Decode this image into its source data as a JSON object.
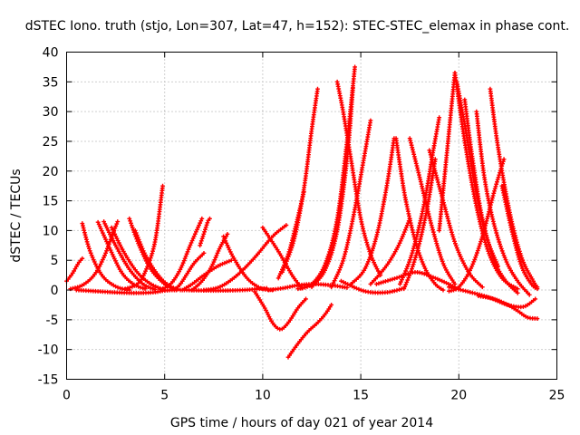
{
  "chart_data": {
    "type": "scatter",
    "title": "dSTEC Iono. truth (stjo, Lon=307, Lat=47, h=152): STEC-STEC_elemax in phase cont.",
    "xlabel": "GPS time / hours of day 021 of year 2014",
    "ylabel": "dSTEC  / TECUs",
    "xlim": [
      0,
      25
    ],
    "ylim": [
      -15,
      40
    ],
    "xticks": [
      0,
      5,
      10,
      15,
      20,
      25
    ],
    "yticks": [
      -15,
      -10,
      -5,
      0,
      5,
      10,
      15,
      20,
      25,
      30,
      35,
      40
    ],
    "grid": true,
    "marker": "plus",
    "color": "#ff0000",
    "series": [
      {
        "x": [
          0.0,
          0.3,
          0.6,
          0.8
        ],
        "y": [
          1.5,
          2.8,
          4.5,
          5.3
        ]
      },
      {
        "x": [
          0.8,
          1.2,
          1.8,
          2.5,
          3.2
        ],
        "y": [
          11.2,
          6.5,
          2.5,
          0.6,
          0.0
        ]
      },
      {
        "x": [
          0.2,
          0.8,
          1.4,
          1.9,
          2.3,
          2.6
        ],
        "y": [
          0.2,
          0.8,
          2.5,
          5.5,
          9.0,
          11.5
        ]
      },
      {
        "x": [
          1.6,
          2.2,
          2.8,
          3.4,
          4.0
        ],
        "y": [
          11.4,
          7.0,
          3.0,
          1.0,
          0.2
        ]
      },
      {
        "x": [
          1.9,
          2.5,
          3.2,
          3.9,
          4.5
        ],
        "y": [
          11.5,
          7.5,
          3.5,
          1.0,
          0.1
        ]
      },
      {
        "x": [
          2.3,
          2.9,
          3.6,
          4.3,
          5.0
        ],
        "y": [
          10.5,
          6.5,
          3.0,
          1.0,
          0.0
        ]
      },
      {
        "x": [
          3.2,
          3.7,
          4.3,
          5.0,
          5.6
        ],
        "y": [
          12.0,
          7.5,
          3.5,
          1.0,
          0.0
        ]
      },
      {
        "x": [
          3.5,
          4.0,
          4.6,
          5.2,
          5.8
        ],
        "y": [
          10.0,
          6.0,
          2.8,
          0.8,
          0.0
        ]
      },
      {
        "x": [
          0.5,
          1.5,
          2.5,
          3.5,
          4.4,
          5.0,
          5.5
        ],
        "y": [
          0.0,
          -0.2,
          -0.4,
          -0.5,
          -0.4,
          -0.1,
          0.0
        ]
      },
      {
        "x": [
          3.0,
          3.6,
          4.0,
          4.5,
          4.9
        ],
        "y": [
          0.2,
          1.0,
          3.0,
          8.0,
          17.5
        ]
      },
      {
        "x": [
          4.8,
          5.3,
          5.8,
          6.3,
          6.9
        ],
        "y": [
          0.1,
          1.0,
          3.5,
          7.5,
          12.0
        ]
      },
      {
        "x": [
          5.5,
          5.8,
          6.1,
          6.5,
          7.0
        ],
        "y": [
          0.0,
          1.0,
          2.5,
          4.5,
          6.2
        ]
      },
      {
        "x": [
          5.9,
          6.4,
          7.0,
          7.7,
          8.4
        ],
        "y": [
          0.0,
          1.0,
          2.5,
          4.0,
          5.0
        ]
      },
      {
        "x": [
          6.4,
          6.9,
          7.4,
          7.8,
          8.2
        ],
        "y": [
          0.0,
          1.5,
          4.0,
          7.0,
          9.4
        ]
      },
      {
        "x": [
          6.8,
          7.0,
          7.2,
          7.3
        ],
        "y": [
          7.5,
          9.5,
          11.5,
          12.0
        ]
      },
      {
        "x": [
          8.0,
          8.5,
          9.2,
          9.9,
          10.5
        ],
        "y": [
          9.0,
          5.5,
          2.0,
          0.3,
          0.0
        ]
      },
      {
        "x": [
          7.0,
          7.8,
          8.7,
          9.6,
          10.5,
          11.2
        ],
        "y": [
          0.0,
          0.5,
          2.5,
          5.5,
          9.0,
          10.9
        ]
      },
      {
        "x": [
          10.0,
          10.8,
          11.5,
          12.0
        ],
        "y": [
          10.5,
          6.5,
          2.5,
          0.3
        ]
      },
      {
        "x": [
          6.0,
          7.5,
          9.0,
          10.2
        ],
        "y": [
          0.0,
          -0.1,
          0.0,
          0.3
        ]
      },
      {
        "x": [
          9.6,
          10.1,
          10.5,
          10.9,
          11.3,
          11.8,
          12.2
        ],
        "y": [
          -0.3,
          -3.0,
          -5.5,
          -6.6,
          -5.5,
          -3.0,
          -1.5
        ]
      },
      {
        "x": [
          10.3,
          11.0,
          11.8,
          12.6,
          13.5,
          14.3
        ],
        "y": [
          0.0,
          0.3,
          0.8,
          1.0,
          0.8,
          0.4
        ]
      },
      {
        "x": [
          10.8,
          11.3,
          11.7,
          12.1
        ],
        "y": [
          2.0,
          6.0,
          11.0,
          16.5
        ]
      },
      {
        "x": [
          11.3,
          11.8,
          12.3,
          12.8,
          13.2,
          13.5
        ],
        "y": [
          -11.3,
          -9.0,
          -7.0,
          -5.5,
          -4.0,
          -2.5
        ]
      },
      {
        "x": [
          11.0,
          11.6,
          12.1,
          12.5,
          12.8
        ],
        "y": [
          3.0,
          8.5,
          17.0,
          27.0,
          33.8
        ]
      },
      {
        "x": [
          11.8,
          12.5,
          13.2,
          13.8,
          14.3,
          14.7
        ],
        "y": [
          0.2,
          1.0,
          4.5,
          12.0,
          25.0,
          37.5
        ]
      },
      {
        "x": [
          12.5,
          13.2,
          13.8,
          14.3,
          14.6
        ],
        "y": [
          0.5,
          3.5,
          10.0,
          22.0,
          34.0
        ]
      },
      {
        "x": [
          13.8,
          14.1,
          14.5,
          15.0,
          15.5,
          16.0
        ],
        "y": [
          35.0,
          30.0,
          22.0,
          12.0,
          6.0,
          2.5
        ]
      },
      {
        "x": [
          13.5,
          14.1,
          14.6,
          15.1,
          15.5
        ],
        "y": [
          0.5,
          5.0,
          12.0,
          21.0,
          28.5
        ]
      },
      {
        "x": [
          14.5,
          15.2,
          15.8,
          16.3,
          16.7
        ],
        "y": [
          1.0,
          3.5,
          9.0,
          17.0,
          25.5
        ]
      },
      {
        "x": [
          15.5,
          16.0,
          16.5,
          17.0,
          17.5
        ],
        "y": [
          1.0,
          2.8,
          5.0,
          8.0,
          12.0
        ]
      },
      {
        "x": [
          14.0,
          15.2,
          16.3,
          17.2
        ],
        "y": [
          1.5,
          -0.2,
          -0.4,
          0.3
        ]
      },
      {
        "x": [
          16.8,
          17.0,
          17.3,
          17.8,
          18.3,
          18.8,
          19.2
        ],
        "y": [
          25.5,
          21.0,
          15.0,
          8.0,
          3.5,
          1.0,
          0.0
        ]
      },
      {
        "x": [
          15.8,
          16.8,
          17.8,
          18.8,
          19.8
        ],
        "y": [
          1.0,
          2.0,
          3.0,
          2.0,
          0.5
        ]
      },
      {
        "x": [
          17.2,
          17.6,
          18.0,
          18.4,
          18.8
        ],
        "y": [
          0.2,
          3.5,
          8.0,
          14.0,
          22.0
        ]
      },
      {
        "x": [
          17.0,
          17.6,
          18.2,
          18.7,
          19.0
        ],
        "y": [
          1.0,
          6.0,
          14.0,
          23.5,
          29.0
        ]
      },
      {
        "x": [
          17.5,
          18.0,
          18.6,
          19.2,
          19.8
        ],
        "y": [
          25.5,
          19.0,
          11.0,
          4.5,
          1.0
        ]
      },
      {
        "x": [
          18.5,
          19.2,
          19.8,
          20.5,
          21.2
        ],
        "y": [
          23.5,
          15.0,
          8.0,
          3.0,
          0.5
        ]
      },
      {
        "x": [
          19.0,
          19.3,
          19.6,
          19.8
        ],
        "y": [
          10.0,
          20.0,
          30.0,
          36.5
        ]
      },
      {
        "x": [
          19.8,
          20.3,
          20.9,
          21.5,
          22.2,
          23.0
        ],
        "y": [
          36.5,
          25.0,
          14.0,
          6.5,
          2.0,
          0.2
        ]
      },
      {
        "x": [
          19.5,
          20.0,
          20.6,
          21.2,
          21.8,
          22.3
        ],
        "y": [
          -0.2,
          0.5,
          3.5,
          9.0,
          16.5,
          22.0
        ]
      },
      {
        "x": [
          19.9,
          20.4,
          20.9,
          21.4,
          22.0
        ],
        "y": [
          35.0,
          26.0,
          16.0,
          9.0,
          4.0
        ]
      },
      {
        "x": [
          20.3,
          20.7,
          21.2,
          21.8,
          22.4,
          23.0
        ],
        "y": [
          32.0,
          22.0,
          12.0,
          5.0,
          1.5,
          -0.5
        ]
      },
      {
        "x": [
          20.9,
          21.3,
          21.8,
          22.4,
          23.0,
          23.6
        ],
        "y": [
          30.0,
          19.0,
          11.0,
          5.0,
          1.5,
          -0.8
        ]
      },
      {
        "x": [
          21.6,
          22.0,
          22.6,
          23.2,
          23.8,
          24.0
        ],
        "y": [
          33.8,
          24.0,
          13.0,
          5.5,
          1.5,
          0.5
        ]
      },
      {
        "x": [
          22.2,
          22.7,
          23.2,
          23.7,
          24.0
        ],
        "y": [
          17.5,
          10.0,
          4.0,
          1.0,
          0.2
        ]
      },
      {
        "x": [
          21.0,
          21.8,
          22.5,
          23.0,
          23.5,
          24.0
        ],
        "y": [
          -1.0,
          -1.5,
          -2.5,
          -3.5,
          -4.6,
          -4.8
        ]
      },
      {
        "x": [
          19.5,
          20.5,
          21.5,
          22.5,
          23.3,
          23.9
        ],
        "y": [
          0.5,
          -0.3,
          -1.2,
          -2.5,
          -2.8,
          -1.5
        ]
      }
    ]
  }
}
